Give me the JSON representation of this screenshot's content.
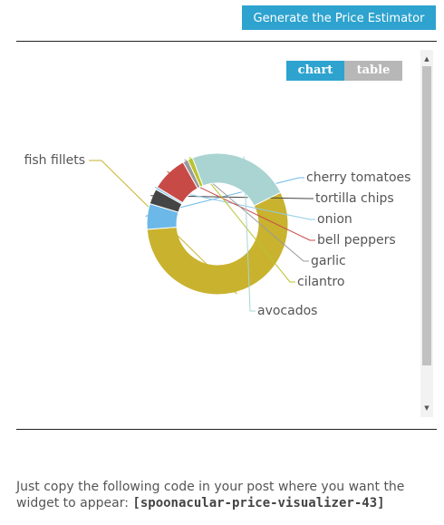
{
  "header": {
    "generate_button": "Generate the Price Estimator"
  },
  "widget": {
    "tabs": {
      "chart": "chart",
      "table": "table"
    },
    "active_tab": "chart"
  },
  "chart_data": {
    "type": "pie",
    "style": "donut",
    "slices": [
      {
        "label": "fish fillets",
        "value": 48.0,
        "color": "#c9b22e"
      },
      {
        "label": "cherry tomatoes",
        "value": 5.0,
        "color": "#6cb8e8"
      },
      {
        "label": "tortilla chips",
        "value": 3.0,
        "color": "#454545"
      },
      {
        "label": "onion",
        "value": 0.5,
        "color": "#8ecbe8"
      },
      {
        "label": "bell peppers",
        "value": 7.0,
        "color": "#c84a47"
      },
      {
        "label": "garlic",
        "value": 1.0,
        "color": "#9a9a9a"
      },
      {
        "label": "cilantro",
        "value": 1.0,
        "color": "#b8c42e"
      },
      {
        "label": "avocados",
        "value": 20.0,
        "color": "#a9d4d2"
      }
    ]
  },
  "footer": {
    "instruction": "Just copy the following code in your post where you want the widget to appear: ",
    "code": "[spoonacular-price-visualizer-43]"
  }
}
